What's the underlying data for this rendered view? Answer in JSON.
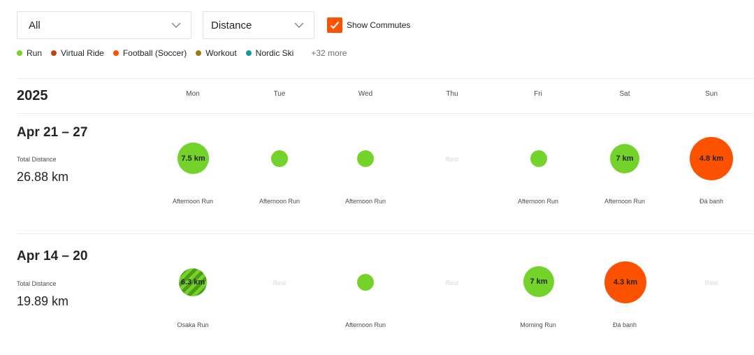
{
  "filters": {
    "sport_value": "All",
    "metric_value": "Distance",
    "show_commutes_label": "Show Commutes",
    "show_commutes_checked": true
  },
  "legend": {
    "items": [
      {
        "label": "Run",
        "color": "#73d32a"
      },
      {
        "label": "Virtual Ride",
        "color": "#c4400e"
      },
      {
        "label": "Football (Soccer)",
        "color": "#fc5200"
      },
      {
        "label": "Workout",
        "color": "#a0790f"
      },
      {
        "label": "Nordic Ski",
        "color": "#1a97a3"
      }
    ],
    "more": "+32 more"
  },
  "calendar": {
    "year": "2025",
    "days": [
      "Mon",
      "Tue",
      "Wed",
      "Thu",
      "Fri",
      "Sat",
      "Sun"
    ],
    "weeks": [
      {
        "range": "Apr 21 – 27",
        "total_label": "Total Distance",
        "total_value": "26.88 km",
        "entries": [
          {
            "type": "run",
            "value": "7.5 km",
            "name": "Afternoon Run"
          },
          {
            "type": "run",
            "value": "",
            "name": "Afternoon Run"
          },
          {
            "type": "run",
            "value": "",
            "name": "Afternoon Run"
          },
          {
            "type": "rest",
            "value": "Rest",
            "name": ""
          },
          {
            "type": "run",
            "value": "",
            "name": "Afternoon Run"
          },
          {
            "type": "run",
            "value": "7 km",
            "name": "Afternoon Run"
          },
          {
            "type": "soccer",
            "value": "4.8 km",
            "name": "Đá banh"
          }
        ]
      },
      {
        "range": "Apr 14 – 20",
        "total_label": "Total Distance",
        "total_value": "19.89 km",
        "entries": [
          {
            "type": "run-striped",
            "value": "6.3 km",
            "name": "Osaka Run"
          },
          {
            "type": "rest",
            "value": "Rest",
            "name": ""
          },
          {
            "type": "run",
            "value": "",
            "name": "Afternoon Run"
          },
          {
            "type": "rest",
            "value": "Rest",
            "name": ""
          },
          {
            "type": "run",
            "value": "7 km",
            "name": "Morning Run"
          },
          {
            "type": "soccer",
            "value": "4.3 km",
            "name": "Đá banh"
          },
          {
            "type": "rest",
            "value": "Rest",
            "name": ""
          }
        ]
      }
    ]
  }
}
